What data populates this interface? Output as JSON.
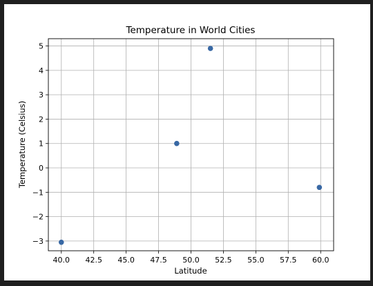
{
  "chart_data": {
    "type": "scatter",
    "title": "Temperature in World Cities",
    "xlabel": "Latitude",
    "ylabel": "Temperature (Celsius)",
    "xlim": [
      39.0,
      61.0
    ],
    "ylim": [
      -3.4,
      5.3
    ],
    "xticks": [
      40.0,
      42.5,
      45.0,
      47.5,
      50.0,
      52.5,
      55.0,
      57.5,
      60.0
    ],
    "xtick_labels": [
      "40.0",
      "42.5",
      "45.0",
      "47.5",
      "50.0",
      "52.5",
      "55.0",
      "57.5",
      "60.0"
    ],
    "yticks": [
      -3,
      -2,
      -1,
      0,
      1,
      2,
      3,
      4,
      5
    ],
    "ytick_labels": [
      "−3",
      "−2",
      "−1",
      "0",
      "1",
      "2",
      "3",
      "4",
      "5"
    ],
    "grid": true,
    "marker_color": "#3868a4",
    "points": [
      {
        "x": 40.0,
        "y": -3.05
      },
      {
        "x": 48.9,
        "y": 1.0
      },
      {
        "x": 51.5,
        "y": 4.9
      },
      {
        "x": 59.9,
        "y": -0.8
      }
    ]
  }
}
